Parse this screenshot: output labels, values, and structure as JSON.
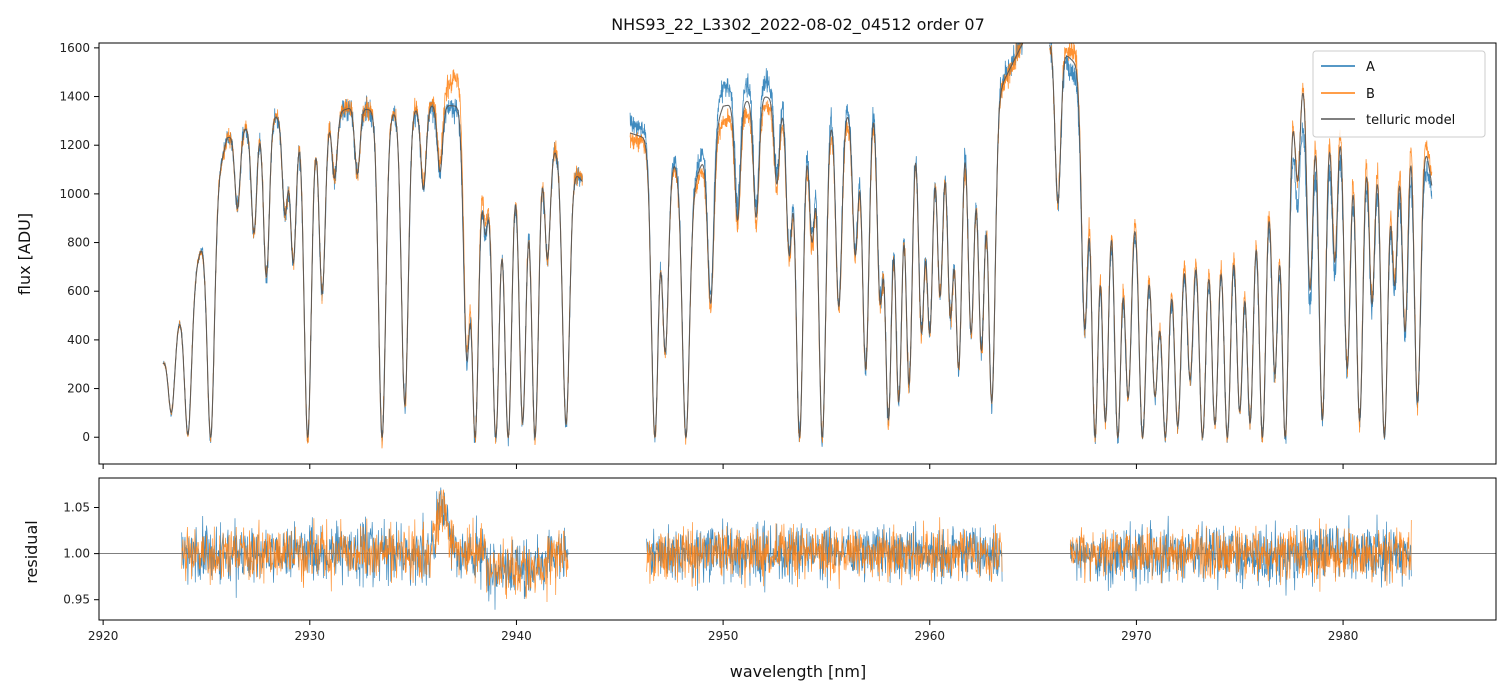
{
  "chart_data": [
    {
      "type": "line",
      "panel": "main",
      "title": "NHS93_22_L3302_2022-08-02_04512  order 07",
      "xlabel": "",
      "ylabel": "flux [ADU]",
      "xlim": [
        2919.8,
        2987.4
      ],
      "ylim": [
        -110,
        1620
      ],
      "yticks": [
        0,
        200,
        400,
        600,
        800,
        1000,
        1200,
        1400,
        1600
      ],
      "legend_position": "top-right",
      "segments": [
        [
          2922.9,
          2943.2
        ],
        [
          2945.5,
          2964.5
        ],
        [
          2965.8,
          2984.3
        ]
      ],
      "series": [
        {
          "name": "A",
          "color": "#1f77b4"
        },
        {
          "name": "B",
          "color": "#ff7f0e"
        },
        {
          "name": "telluric model",
          "color": "#555555"
        }
      ],
      "continuum": {
        "x": [
          2922.9,
          2924.5,
          2926,
          2928,
          2930,
          2932,
          2934,
          2936,
          2937.5,
          2939,
          2941,
          2943.2,
          2945.5,
          2947,
          2948.5,
          2950,
          2952,
          2954,
          2956,
          2958,
          2960,
          2962,
          2963.5,
          2964.5,
          2966,
          2967.5,
          2969,
          2971,
          2973,
          2975,
          2976.5,
          2978,
          2980,
          2982,
          2983.5,
          2984.3
        ],
        "A": [
          310,
          700,
          1230,
          1320,
          1290,
          1350,
          1330,
          1360,
          1350,
          1150,
          1270,
          1050,
          1300,
          1230,
          1050,
          1440,
          1460,
          1400,
          1380,
          1500,
          1480,
          1460,
          1470,
          1620,
          1620,
          1420,
          1180,
          800,
          950,
          1050,
          1250,
          1380,
          1350,
          1300,
          1400,
          1000
        ],
        "B": [
          310,
          700,
          1230,
          1330,
          1300,
          1360,
          1340,
          1380,
          1520,
          1160,
          1280,
          1060,
          1220,
          1200,
          1000,
          1300,
          1360,
          1320,
          1300,
          1460,
          1440,
          1420,
          1440,
          1620,
          1620,
          1560,
          1260,
          860,
          1020,
          1120,
          1320,
          1560,
          1480,
          1420,
          1580,
          1060
        ],
        "model": [
          310,
          700,
          1230,
          1325,
          1295,
          1355,
          1335,
          1365,
          1360,
          1150,
          1275,
          1050,
          1250,
          1210,
          1020,
          1360,
          1400,
          1360,
          1340,
          1480,
          1460,
          1440,
          1450,
          1620,
          1620,
          1500,
          1220,
          830,
          980,
          1090,
          1290,
          1540,
          1420,
          1360,
          1500,
          1030
        ]
      },
      "absorption_lines": [
        [
          2923.3,
          0.75
        ],
        [
          2924.1,
          0.98
        ],
        [
          2925.2,
          1.0
        ],
        [
          2926.5,
          0.25
        ],
        [
          2927.3,
          0.35
        ],
        [
          2927.9,
          0.5
        ],
        [
          2928.8,
          0.3
        ],
        [
          2929.2,
          0.45
        ],
        [
          2929.9,
          1.0
        ],
        [
          2930.6,
          0.55
        ],
        [
          2931.2,
          0.2
        ],
        [
          2932.3,
          0.2
        ],
        [
          2933.5,
          1.0
        ],
        [
          2934.6,
          0.9
        ],
        [
          2935.5,
          0.25
        ],
        [
          2936.3,
          0.2
        ],
        [
          2937.6,
          0.75
        ],
        [
          2938.0,
          1.0
        ],
        [
          2938.5,
          0.3
        ],
        [
          2939.0,
          1.0
        ],
        [
          2939.6,
          1.0
        ],
        [
          2940.3,
          0.95
        ],
        [
          2940.9,
          1.0
        ],
        [
          2941.5,
          0.4
        ],
        [
          2942.4,
          0.95
        ],
        [
          2946.7,
          1.0
        ],
        [
          2947.2,
          0.7
        ],
        [
          2948.2,
          1.0
        ],
        [
          2949.4,
          0.55
        ],
        [
          2950.7,
          0.35
        ],
        [
          2951.6,
          0.35
        ],
        [
          2952.6,
          0.25
        ],
        [
          2953.2,
          0.45
        ],
        [
          2953.7,
          1.0
        ],
        [
          2954.3,
          0.4
        ],
        [
          2954.8,
          1.0
        ],
        [
          2955.6,
          0.6
        ],
        [
          2956.4,
          0.45
        ],
        [
          2956.9,
          0.8
        ],
        [
          2957.6,
          0.6
        ],
        [
          2958.0,
          0.95
        ],
        [
          2958.5,
          0.9
        ],
        [
          2959.0,
          0.85
        ],
        [
          2959.6,
          0.7
        ],
        [
          2960.0,
          0.7
        ],
        [
          2960.5,
          0.6
        ],
        [
          2961.0,
          0.65
        ],
        [
          2961.4,
          0.8
        ],
        [
          2962.0,
          0.7
        ],
        [
          2962.5,
          0.75
        ],
        [
          2963.0,
          0.9
        ],
        [
          2966.2,
          0.4
        ],
        [
          2967.5,
          0.7
        ],
        [
          2968.0,
          1.0
        ],
        [
          2968.5,
          0.95
        ],
        [
          2969.1,
          1.0
        ],
        [
          2969.6,
          0.85
        ],
        [
          2970.3,
          1.0
        ],
        [
          2970.9,
          0.8
        ],
        [
          2971.4,
          1.0
        ],
        [
          2972.0,
          0.95
        ],
        [
          2972.6,
          0.75
        ],
        [
          2973.2,
          1.0
        ],
        [
          2973.8,
          0.95
        ],
        [
          2974.4,
          1.0
        ],
        [
          2975.0,
          0.9
        ],
        [
          2975.5,
          0.95
        ],
        [
          2976.1,
          1.0
        ],
        [
          2976.7,
          0.8
        ],
        [
          2977.2,
          1.0
        ],
        [
          2977.8,
          0.3
        ],
        [
          2978.4,
          0.6
        ],
        [
          2979.0,
          0.95
        ],
        [
          2979.6,
          0.5
        ],
        [
          2980.2,
          0.8
        ],
        [
          2980.8,
          0.95
        ],
        [
          2981.4,
          0.6
        ],
        [
          2982.0,
          1.0
        ],
        [
          2982.5,
          0.55
        ],
        [
          2983.0,
          0.7
        ],
        [
          2983.6,
          0.9
        ]
      ]
    },
    {
      "type": "line",
      "panel": "residual",
      "xlabel": "wavelength [nm]",
      "ylabel": "residual",
      "xlim": [
        2919.8,
        2987.4
      ],
      "ylim": [
        0.928,
        1.082
      ],
      "xticks": [
        2920,
        2930,
        2940,
        2950,
        2960,
        2970,
        2980
      ],
      "yticks": [
        0.95,
        1.0,
        1.05
      ],
      "reference_line": 1.0,
      "segments": [
        [
          2923.8,
          2942.5
        ],
        [
          2946.3,
          2963.5
        ],
        [
          2966.8,
          2983.3
        ]
      ],
      "series": [
        {
          "name": "A",
          "color": "#1f77b4",
          "noise": 0.022
        },
        {
          "name": "B",
          "color": "#ff7f0e",
          "noise": 0.02
        }
      ]
    }
  ]
}
